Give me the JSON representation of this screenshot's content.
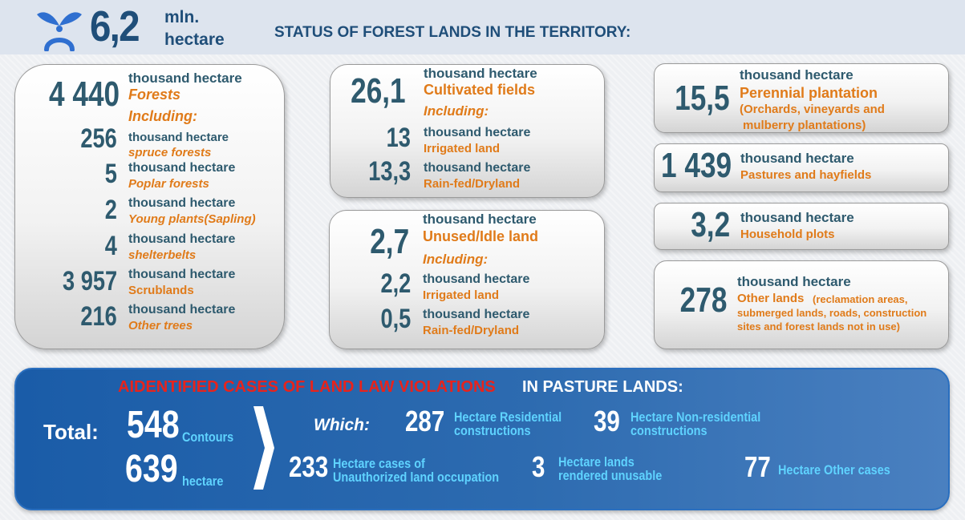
{
  "header": {
    "value": "6,2",
    "unit_line1": "mln.",
    "unit_line2": "hectare",
    "title": "STATUS OF FOREST LANDS IN THE TERRITORY:",
    "icon": "sprout-person-icon",
    "accent_color": "#1f4e79"
  },
  "forests": {
    "total": "4 440",
    "unit": "thousand hectare",
    "label": "Forests",
    "including": "Including:",
    "items": [
      {
        "value": "256",
        "unit": "thousand hectare",
        "label": "spruce forests"
      },
      {
        "value": "5",
        "unit": "thousand hectare",
        "label": "Poplar forests"
      },
      {
        "value": "2",
        "unit": "thousand hectare",
        "label": "Young plants(Sapling)"
      },
      {
        "value": "4",
        "unit": "thousand hectare",
        "label": "shelterbelts"
      },
      {
        "value": "3 957",
        "unit": "thousand hectare",
        "label": "Scrublands"
      },
      {
        "value": "216",
        "unit": "thousand hectare",
        "label": "Other trees"
      }
    ]
  },
  "cultivated": {
    "total": "26,1",
    "unit": "thousand hectare",
    "label": "Cultivated fields",
    "including": "Including:",
    "items": [
      {
        "value": "13",
        "unit": "thousand hectare",
        "label": "Irrigated land"
      },
      {
        "value": "13,3",
        "unit": "thousand hectare",
        "label": "Rain-fed/Dryland"
      }
    ]
  },
  "unused": {
    "total": "2,7",
    "unit": "thousand hectare",
    "label": "Unused/Idle land",
    "including": "Including:",
    "items": [
      {
        "value": "2,2",
        "unit": "thousand hectare",
        "label": "Irrigated land"
      },
      {
        "value": "0,5",
        "unit": "thousand hectare",
        "label": "Rain-fed/Dryland"
      }
    ]
  },
  "perennial": {
    "value": "15,5",
    "unit": "thousand hectare",
    "label": "Perennial plantation",
    "note_line1": "(Orchards, vineyards and",
    "note_line2": "mulberry plantations)"
  },
  "pastures": {
    "value": "1 439",
    "unit": "thousand hectare",
    "label": "Pastures and hayfields"
  },
  "household": {
    "value": "3,2",
    "unit": "thousand hectare",
    "label": "Household plots"
  },
  "other_lands": {
    "value": "278",
    "unit": "thousand hectare",
    "label": "Other lands",
    "note_line1": "(reclamation areas,",
    "note_line2": "submerged lands, roads, construction",
    "note_line3": "sites and forest lands not in use)"
  },
  "violations": {
    "title_red": "AIDENTIFIED CASES OF LAND LAW VIOLATIONS",
    "title_white": "IN PASTURE LANDS:",
    "total_label": "Total:",
    "contours_value": "548",
    "contours_label": "Contours",
    "hectare_value": "639",
    "hectare_label": "hectare",
    "which_label": "Which:",
    "items": [
      {
        "value": "287",
        "line1": "Hectare Residential",
        "line2": "constructions"
      },
      {
        "value": "39",
        "line1": "Hectare Non-residential",
        "line2": "constructions"
      },
      {
        "value": "233",
        "line1": "Hectare cases of",
        "line2": "Unauthorized land occupation"
      },
      {
        "value": "3",
        "line1": "Hectare lands",
        "line2": "rendered unusable"
      },
      {
        "value": "77",
        "line1": "Hectare Other cases",
        "line2": ""
      }
    ],
    "colors": {
      "red": "#e8231c",
      "cyan": "#5fd3ff",
      "banner": "#1a5ca8"
    }
  }
}
